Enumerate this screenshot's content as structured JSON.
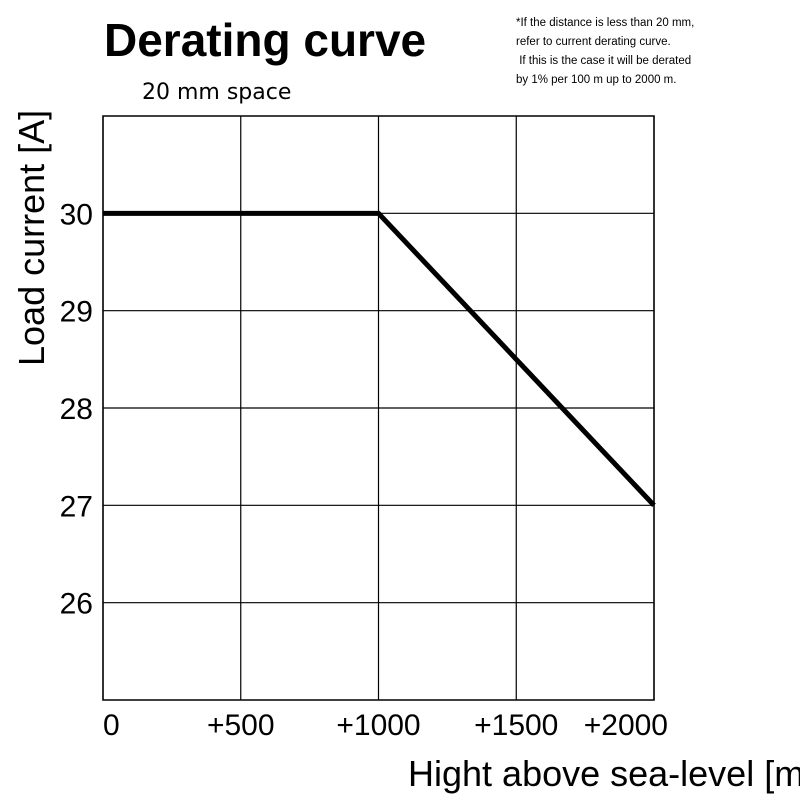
{
  "chart_data": {
    "type": "line",
    "title": "Derating curve",
    "subtitle": "20 mm space",
    "note": [
      "*If the distance is less than 20 mm,",
      "refer to current derating curve.",
      " If this is the case it will be derated",
      "by 1% per 100 m up to 2000 m."
    ],
    "xlabel": "Hight above sea-level [m]",
    "ylabel": "Load current [A]",
    "xlim": [
      0,
      2000
    ],
    "ylim": [
      25,
      31
    ],
    "x_ticks": [
      0,
      500,
      1000,
      1500,
      2000
    ],
    "x_tick_labels": [
      "0",
      "+500",
      "+1000",
      "+1500",
      "+2000"
    ],
    "y_ticks": [
      26,
      27,
      28,
      29,
      30
    ],
    "y_tick_labels": [
      "26",
      "27",
      "28",
      "29",
      "30"
    ],
    "grid": true,
    "series": [
      {
        "x": [
          0,
          1000,
          2000
        ],
        "y": [
          30,
          30,
          27
        ]
      }
    ],
    "colors": {
      "line": "#000000",
      "grid": "#000000"
    }
  }
}
